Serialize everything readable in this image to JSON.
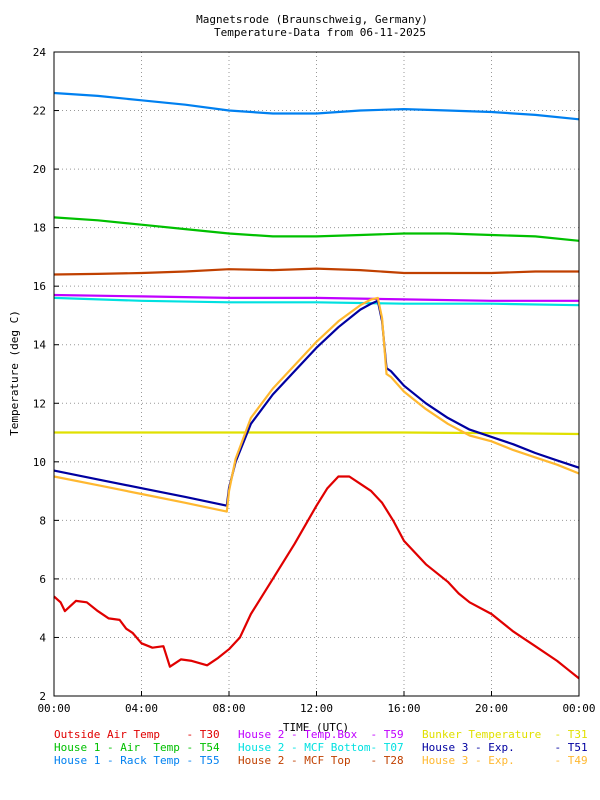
{
  "chart_data": {
    "type": "line",
    "title": "Magnetsrode (Braunschweig, Germany)",
    "subtitle": "Temperature-Data from 06-11-2025",
    "xlabel": "TIME (UTC)",
    "ylabel": "Temperature (deg C)",
    "xlim": [
      0,
      24
    ],
    "ylim": [
      2,
      24
    ],
    "x_ticks": [
      "00:00",
      "04:00",
      "08:00",
      "12:00",
      "16:00",
      "20:00",
      "00:00"
    ],
    "y_ticks": [
      "2",
      "4",
      "6",
      "8",
      "10",
      "12",
      "14",
      "16",
      "18",
      "20",
      "22",
      "24"
    ],
    "grid": true,
    "legend_position": "bottom",
    "series": [
      {
        "name": "House 1 - Rack Temp",
        "code": "T55",
        "color": "#0080f0",
        "x": [
          0,
          2,
          4,
          6,
          8,
          10,
          12,
          14,
          16,
          18,
          20,
          22,
          24
        ],
        "y": [
          22.6,
          22.5,
          22.35,
          22.2,
          22.0,
          21.9,
          21.9,
          22.0,
          22.05,
          22.0,
          21.95,
          21.85,
          21.7
        ]
      },
      {
        "name": "House 1 - Air  Temp",
        "code": "T54",
        "color": "#00c000",
        "x": [
          0,
          2,
          4,
          6,
          8,
          10,
          12,
          14,
          16,
          18,
          20,
          22,
          24
        ],
        "y": [
          18.35,
          18.25,
          18.1,
          17.95,
          17.8,
          17.7,
          17.7,
          17.75,
          17.8,
          17.8,
          17.75,
          17.7,
          17.55
        ]
      },
      {
        "name": "House 2 - MCF Top",
        "code": "T28",
        "color": "#c04000",
        "x": [
          0,
          2,
          4,
          6,
          8,
          10,
          12,
          14,
          16,
          18,
          20,
          22,
          24
        ],
        "y": [
          16.4,
          16.42,
          16.45,
          16.5,
          16.58,
          16.55,
          16.6,
          16.55,
          16.45,
          16.45,
          16.45,
          16.5,
          16.5
        ]
      },
      {
        "name": "House 2 - Temp.Box",
        "code": "T59",
        "color": "#c000ff",
        "x": [
          0,
          4,
          8,
          12,
          16,
          20,
          24
        ],
        "y": [
          15.7,
          15.65,
          15.6,
          15.6,
          15.55,
          15.5,
          15.5
        ]
      },
      {
        "name": "House 2 - MCF Bottom",
        "code": "T07",
        "color": "#00e0e0",
        "x": [
          0,
          4,
          8,
          12,
          16,
          20,
          24
        ],
        "y": [
          15.6,
          15.5,
          15.45,
          15.45,
          15.4,
          15.4,
          15.35
        ]
      },
      {
        "name": "Bunker Temperature",
        "code": "T31",
        "color": "#e0e000",
        "x": [
          0,
          4,
          8,
          12,
          16,
          20,
          24
        ],
        "y": [
          11.0,
          11.0,
          11.0,
          11.0,
          11.0,
          10.98,
          10.95
        ]
      },
      {
        "name": "House 3 - Exp.",
        "code": "T51",
        "color": "#0000a0",
        "x": [
          0,
          2,
          4,
          6,
          7.9,
          8.0,
          8.3,
          9,
          10,
          11,
          12,
          13,
          14,
          14.5,
          14.8,
          15.0,
          15.2,
          15.4,
          16,
          17,
          18,
          19,
          20,
          21,
          22,
          23,
          24
        ],
        "y": [
          9.7,
          9.4,
          9.1,
          8.8,
          8.5,
          9.1,
          10.0,
          11.3,
          12.3,
          13.1,
          13.9,
          14.6,
          15.2,
          15.4,
          15.5,
          14.8,
          13.2,
          13.1,
          12.6,
          12.0,
          11.5,
          11.1,
          10.85,
          10.6,
          10.3,
          10.05,
          9.8
        ]
      },
      {
        "name": "House 3 - Exp.",
        "code": "T49",
        "color": "#ffb830",
        "x": [
          0,
          2,
          4,
          6,
          7.9,
          8.0,
          8.3,
          9,
          10,
          11,
          12,
          13,
          14,
          14.5,
          14.8,
          15.0,
          15.2,
          15.4,
          16,
          17,
          18,
          19,
          20,
          21,
          22,
          23,
          24
        ],
        "y": [
          9.5,
          9.2,
          8.9,
          8.6,
          8.3,
          9.0,
          10.1,
          11.5,
          12.5,
          13.3,
          14.1,
          14.8,
          15.35,
          15.55,
          15.6,
          14.9,
          13.0,
          12.9,
          12.4,
          11.8,
          11.3,
          10.9,
          10.7,
          10.4,
          10.15,
          9.9,
          9.6
        ]
      },
      {
        "name": "Outside Air Temp",
        "code": "T30",
        "color": "#e00000",
        "x": [
          0,
          0.3,
          0.5,
          1,
          1.5,
          2,
          2.5,
          3,
          3.3,
          3.6,
          4,
          4.5,
          5,
          5.3,
          5.8,
          6.3,
          7,
          7.5,
          8,
          8.5,
          9,
          10,
          11,
          12,
          12.5,
          13,
          13.5,
          14,
          14.5,
          15,
          15.5,
          16,
          17,
          18,
          18.5,
          19,
          20,
          21,
          22,
          23,
          23.5,
          24
        ],
        "y": [
          5.4,
          5.2,
          4.9,
          5.25,
          5.2,
          4.9,
          4.65,
          4.6,
          4.3,
          4.15,
          3.8,
          3.65,
          3.7,
          3.0,
          3.25,
          3.2,
          3.05,
          3.3,
          3.6,
          4.0,
          4.8,
          6.0,
          7.2,
          8.5,
          9.1,
          9.5,
          9.5,
          9.25,
          9.0,
          8.6,
          8.0,
          7.3,
          6.5,
          5.9,
          5.5,
          5.2,
          4.8,
          4.2,
          3.7,
          3.2,
          2.9,
          2.6
        ]
      }
    ]
  },
  "legend": [
    [
      {
        "name": "Outside Air Temp    ",
        "code": "- T30",
        "color": "#e00000"
      },
      {
        "name": "House 2 - Temp.Box  ",
        "code": "- T59",
        "color": "#c000ff"
      },
      {
        "name": "Bunker Temperature  ",
        "code": "- T31",
        "color": "#e0e000"
      }
    ],
    [
      {
        "name": "House 1 - Air  Temp ",
        "code": "- T54",
        "color": "#00c000"
      },
      {
        "name": "House 2 - MCF Bottom",
        "code": "- T07",
        "color": "#00e0e0"
      },
      {
        "name": "House 3 - Exp.      ",
        "code": "- T51",
        "color": "#0000a0"
      }
    ],
    [
      {
        "name": "House 1 - Rack Temp ",
        "code": "- T55",
        "color": "#0080f0"
      },
      {
        "name": "House 2 - MCF Top   ",
        "code": "- T28",
        "color": "#c04000"
      },
      {
        "name": "House 3 - Exp.      ",
        "code": "- T49",
        "color": "#ffb830"
      }
    ]
  ]
}
